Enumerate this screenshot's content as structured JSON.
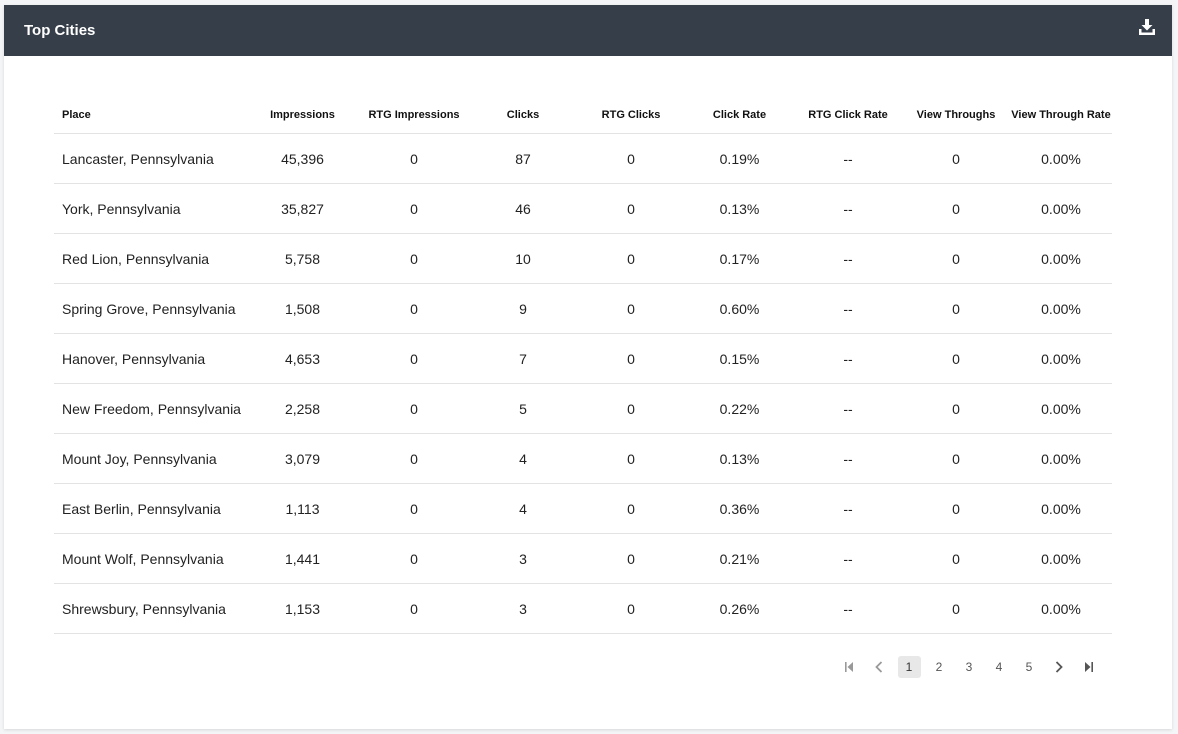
{
  "header": {
    "title": "Top Cities",
    "download_icon": "download-icon"
  },
  "table": {
    "columns": [
      "Place",
      "Impressions",
      "RTG Impressions",
      "Clicks",
      "RTG Clicks",
      "Click Rate",
      "RTG Click Rate",
      "View Throughs",
      "View Through Rate"
    ],
    "rows": [
      [
        "Lancaster, Pennsylvania",
        "45,396",
        "0",
        "87",
        "0",
        "0.19%",
        "--",
        "0",
        "0.00%"
      ],
      [
        "York, Pennsylvania",
        "35,827",
        "0",
        "46",
        "0",
        "0.13%",
        "--",
        "0",
        "0.00%"
      ],
      [
        "Red Lion, Pennsylvania",
        "5,758",
        "0",
        "10",
        "0",
        "0.17%",
        "--",
        "0",
        "0.00%"
      ],
      [
        "Spring Grove, Pennsylvania",
        "1,508",
        "0",
        "9",
        "0",
        "0.60%",
        "--",
        "0",
        "0.00%"
      ],
      [
        "Hanover, Pennsylvania",
        "4,653",
        "0",
        "7",
        "0",
        "0.15%",
        "--",
        "0",
        "0.00%"
      ],
      [
        "New Freedom, Pennsylvania",
        "2,258",
        "0",
        "5",
        "0",
        "0.22%",
        "--",
        "0",
        "0.00%"
      ],
      [
        "Mount Joy, Pennsylvania",
        "3,079",
        "0",
        "4",
        "0",
        "0.13%",
        "--",
        "0",
        "0.00%"
      ],
      [
        "East Berlin, Pennsylvania",
        "1,113",
        "0",
        "4",
        "0",
        "0.36%",
        "--",
        "0",
        "0.00%"
      ],
      [
        "Mount Wolf, Pennsylvania",
        "1,441",
        "0",
        "3",
        "0",
        "0.21%",
        "--",
        "0",
        "0.00%"
      ],
      [
        "Shrewsbury, Pennsylvania",
        "1,153",
        "0",
        "3",
        "0",
        "0.26%",
        "--",
        "0",
        "0.00%"
      ]
    ]
  },
  "pagination": {
    "pages": [
      "1",
      "2",
      "3",
      "4",
      "5"
    ],
    "current": "1",
    "icons": [
      "first-page-icon",
      "prev-page-icon",
      "next-page-icon",
      "last-page-icon"
    ]
  }
}
